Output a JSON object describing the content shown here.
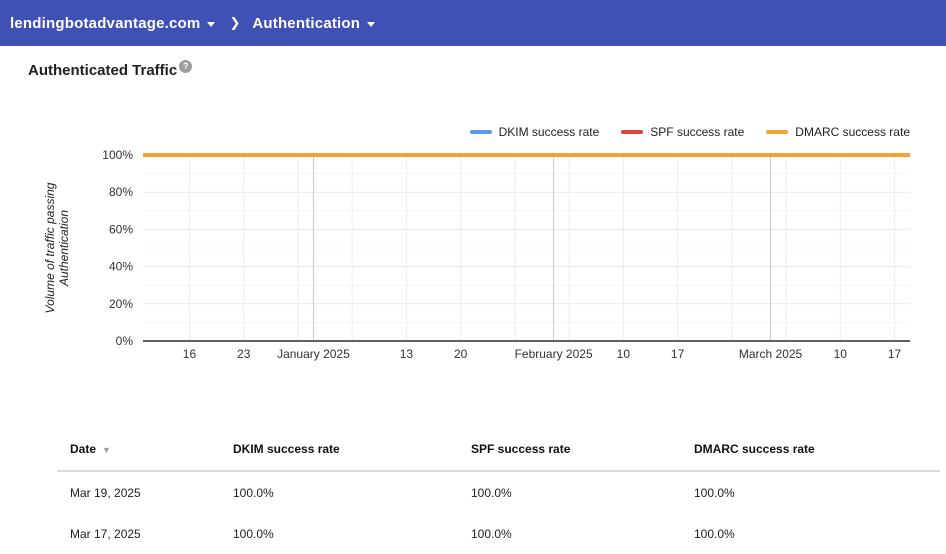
{
  "topbar": {
    "domain": "lendingbotadvantage.com",
    "section": "Authentication",
    "separator": "❯"
  },
  "page": {
    "title": "Authenticated Traffic",
    "help_icon": "?"
  },
  "chart_data": {
    "type": "line",
    "title": "Authenticated Traffic",
    "xlabel": "",
    "ylabel_lines": [
      "Volume of traffic passing",
      "Authentication"
    ],
    "ylim": [
      0,
      100
    ],
    "x_domain_days": 99,
    "x_start_date": "Dec 10, 2024",
    "x_end_date": "Mar 19, 2025",
    "grid": true,
    "legend_position": "top-right",
    "y_ticks": [
      {
        "value": 0,
        "label": "0%"
      },
      {
        "value": 20,
        "label": "20%"
      },
      {
        "value": 40,
        "label": "40%"
      },
      {
        "value": 60,
        "label": "60%"
      },
      {
        "value": 80,
        "label": "80%"
      },
      {
        "value": 100,
        "label": "100%"
      }
    ],
    "x_ticks": [
      {
        "day": 6,
        "label": "16"
      },
      {
        "day": 13,
        "label": "23"
      },
      {
        "day": 22,
        "label": "January 2025"
      },
      {
        "day": 34,
        "label": "13"
      },
      {
        "day": 41,
        "label": "20"
      },
      {
        "day": 53,
        "label": "February 2025"
      },
      {
        "day": 62,
        "label": "10"
      },
      {
        "day": 69,
        "label": "17"
      },
      {
        "day": 81,
        "label": "March 2025"
      },
      {
        "day": 90,
        "label": "10"
      },
      {
        "day": 97,
        "label": "17"
      }
    ],
    "week_lines_days": [
      6,
      13,
      20,
      27,
      34,
      41,
      48,
      55,
      62,
      69,
      76,
      83,
      90,
      97
    ],
    "month_lines_days": [
      22,
      53,
      81
    ],
    "series": [
      {
        "name": "DKIM success rate",
        "color": "#5e97f6",
        "value": 100
      },
      {
        "name": "SPF success rate",
        "color": "#db4437",
        "value": 100
      },
      {
        "name": "DMARC success rate",
        "color": "#f2a237",
        "value": 100
      }
    ]
  },
  "table": {
    "columns": [
      "Date",
      "DKIM success rate",
      "SPF success rate",
      "DMARC success rate"
    ],
    "sort_column": "Date",
    "sort_indicator": "▼",
    "rows": [
      [
        "Mar 19, 2025",
        "100.0%",
        "100.0%",
        "100.0%"
      ],
      [
        "Mar 17, 2025",
        "100.0%",
        "100.0%",
        "100.0%"
      ]
    ]
  },
  "colors": {
    "topbar_bg": "#3f51b5",
    "dkim": "#5e97f6",
    "spf": "#db4437",
    "dmarc": "#f2a237",
    "axis_line": "#5f5f5f"
  }
}
